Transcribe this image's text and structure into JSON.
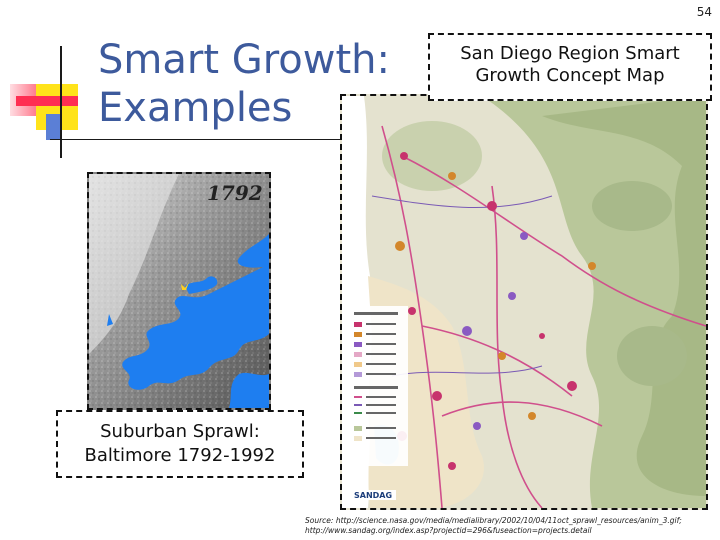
{
  "slide_number": "54",
  "title_line1": "Smart Growth:",
  "title_line2": "Examples",
  "san_diego_label_line1": "San Diego Region Smart",
  "san_diego_label_line2": "Growth Concept Map",
  "baltimore_year": "1792",
  "sprawl_label_line1": "Suburban Sprawl:",
  "sprawl_label_line2": "Baltimore 1792-1992",
  "map_logo": "SANDAG",
  "source_line1": "Source: http://science.nasa.gov/media/medialibrary/2002/10/04/11oct_sprawl_resources/anim_3.gif;",
  "source_line2": "http://www.sandag.org/index.asp?projectid=296&fuseaction=projects.detail",
  "colors": {
    "title": "#3d5a9c",
    "water": "#1e7ef0",
    "deco_yellow": "#ffe31a",
    "deco_red": "#ff2e52",
    "deco_blue": "#5b7fd6"
  }
}
